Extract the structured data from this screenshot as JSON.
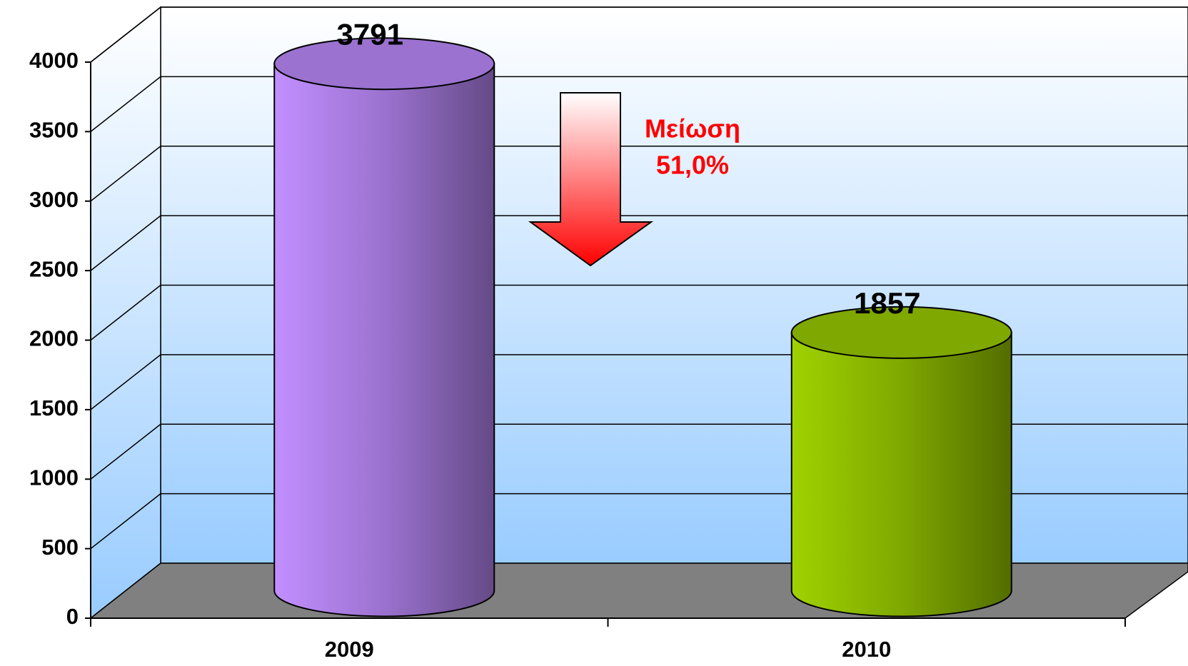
{
  "chart_data": {
    "type": "bar3d",
    "categories": [
      "2009",
      "2010"
    ],
    "values": [
      3791,
      1857
    ],
    "colors": [
      "#9b72cf",
      "#7fa800"
    ],
    "ylim": [
      0,
      4000
    ],
    "yticks": [
      0,
      500,
      1000,
      1500,
      2000,
      2500,
      3000,
      3500,
      4000
    ],
    "grid": true,
    "annotation": [
      "Μείωση",
      "51,0%"
    ]
  }
}
